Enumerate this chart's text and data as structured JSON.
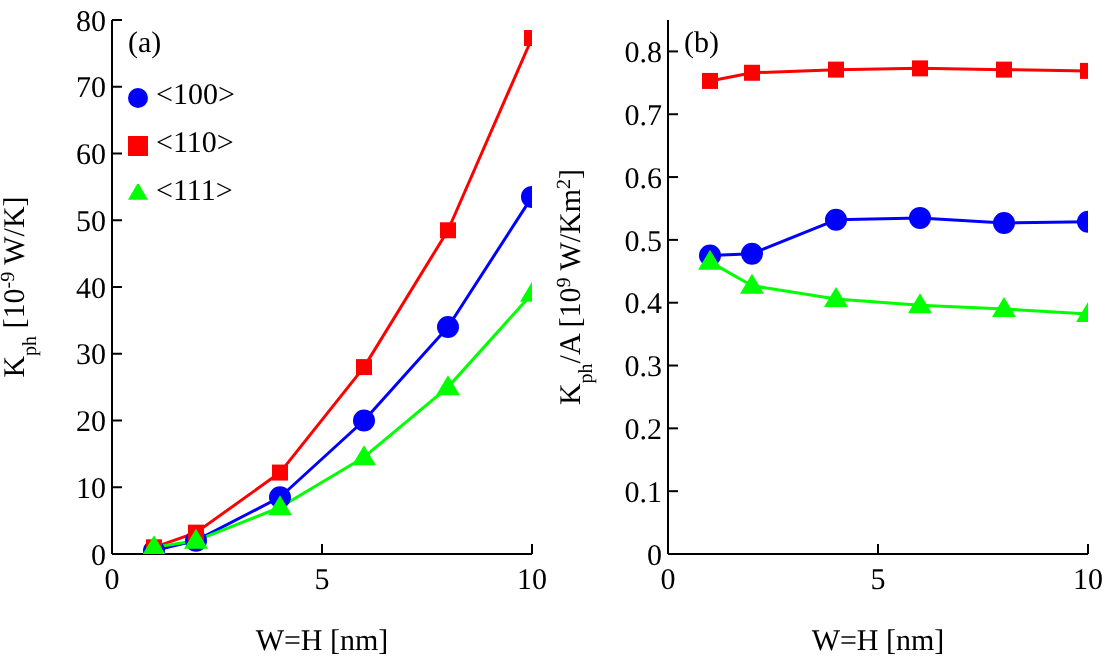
{
  "chart_data": [
    {
      "type": "line",
      "annotations": [
        "(a)"
      ],
      "xlabel": "W=H [nm]",
      "ylabel": "K$_{ph}$ [10$^{-9}$ W/K]",
      "x": [
        1,
        2,
        4,
        6,
        8,
        10
      ],
      "xlim": [
        0,
        10
      ],
      "xticks": [
        0,
        5,
        10
      ],
      "ylim": [
        0,
        80
      ],
      "yticks": [
        0,
        10,
        20,
        30,
        40,
        50,
        60,
        70,
        80
      ],
      "grid": false,
      "legend": "top left",
      "series": [
        {
          "name": "<100>",
          "color": "#0000ff",
          "marker": "circle",
          "values": [
            0.5,
            2,
            8.5,
            20,
            34,
            53.5
          ]
        },
        {
          "name": "<110>",
          "color": "#ff0000",
          "marker": "square",
          "values": [
            1,
            3.2,
            12.2,
            28,
            48.5,
            77.3
          ]
        },
        {
          "name": "<111>",
          "color": "#00ff00",
          "marker": "triangle",
          "values": [
            1,
            2,
            7,
            14.5,
            25,
            39
          ]
        }
      ]
    },
    {
      "type": "line",
      "annotations": [
        "(b)"
      ],
      "xlabel": "W=H [nm]",
      "ylabel": "K$_{ph}$/A [10$^{9}$ W/Km$^{2}$]",
      "x": [
        1,
        2,
        4,
        6,
        8,
        10
      ],
      "xlim": [
        0,
        10
      ],
      "xticks": [
        0,
        5,
        10
      ],
      "ylim": [
        0,
        0.85
      ],
      "yticks": [
        0,
        0.1,
        0.2,
        0.3,
        0.4,
        0.5,
        0.6,
        0.7,
        0.8
      ],
      "grid": false,
      "legend": false,
      "series": [
        {
          "color": "#0000ff",
          "marker": "circle",
          "values": [
            0.475,
            0.478,
            0.532,
            0.535,
            0.527,
            0.529
          ]
        },
        {
          "color": "#ff0000",
          "marker": "square",
          "values": [
            0.753,
            0.766,
            0.771,
            0.773,
            0.771,
            0.769
          ]
        },
        {
          "color": "#00ff00",
          "marker": "triangle",
          "values": [
            0.465,
            0.427,
            0.406,
            0.396,
            0.39,
            0.382
          ]
        }
      ]
    }
  ]
}
